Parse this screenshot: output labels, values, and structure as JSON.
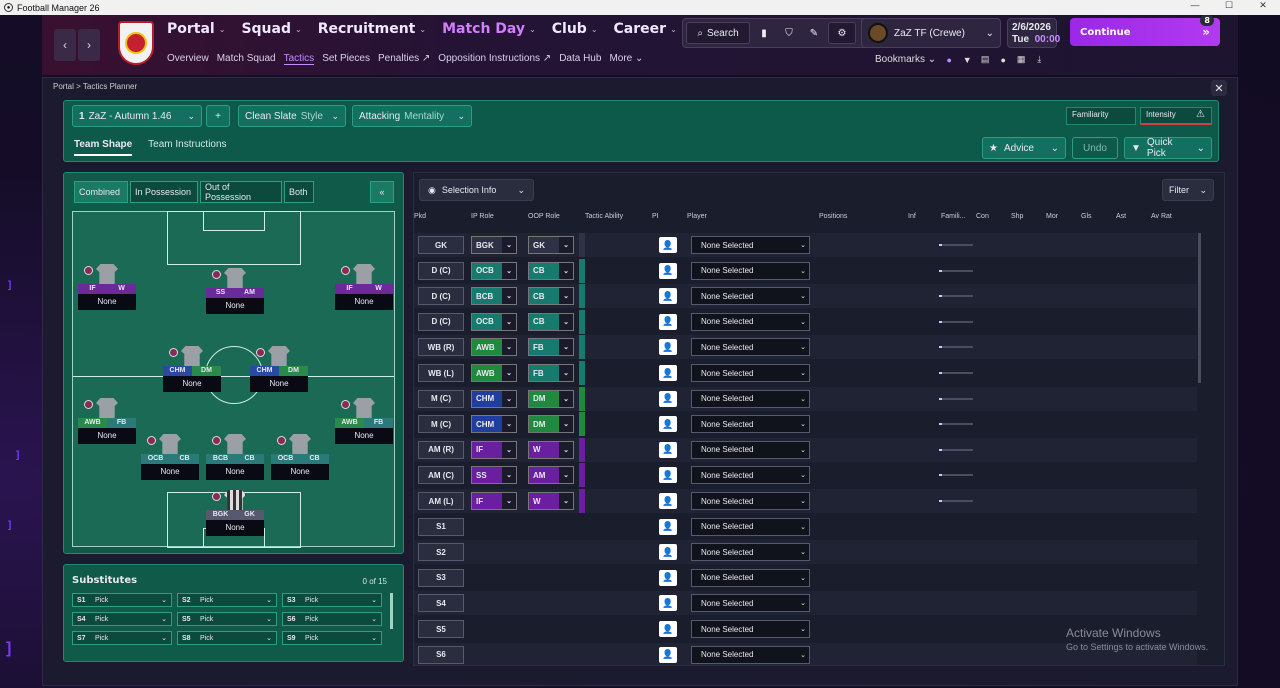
{
  "window": {
    "title": "Football Manager 26",
    "minimize": "—",
    "maximize": "☐",
    "close": "✕"
  },
  "nav": {
    "back": "‹",
    "forward": "›",
    "main": [
      {
        "label": "Portal",
        "active": false
      },
      {
        "label": "Squad",
        "active": false
      },
      {
        "label": "Recruitment",
        "active": false
      },
      {
        "label": "Match Day",
        "active": true
      },
      {
        "label": "Club",
        "active": false
      },
      {
        "label": "Career",
        "active": false
      }
    ],
    "chevron": "⌄",
    "sub": [
      {
        "label": "Overview",
        "active": false
      },
      {
        "label": "Match Squad",
        "active": false
      },
      {
        "label": "Tactics",
        "active": true
      },
      {
        "label": "Set Pieces",
        "active": false
      },
      {
        "label": "Penalties ↗",
        "active": false
      },
      {
        "label": "Opposition Instructions ↗",
        "active": false
      },
      {
        "label": "Data Hub",
        "active": false
      },
      {
        "label": "More ⌄",
        "active": false
      }
    ]
  },
  "search": {
    "label": "Search",
    "icon": "search-icon"
  },
  "profile": {
    "name": "ZaZ TF (Crewe)",
    "chevron": "⌄"
  },
  "date": {
    "date": "2/6/2026",
    "day": "Tue",
    "time": "00:00"
  },
  "continue": {
    "label": "Continue",
    "badge": "8",
    "arrow": "»"
  },
  "bookmarks": {
    "label": "Bookmarks",
    "chevron": "⌄"
  },
  "breadcrumb": {
    "portal": "Portal",
    "sep": ">",
    "page": "Tactics Planner"
  },
  "close": "✕",
  "tactic": {
    "num": "1",
    "name": "ZaZ - Autumn 1.46",
    "add": "+",
    "style_name": "Clean Slate",
    "style_label": "Style",
    "mentality_name": "Attacking",
    "mentality_label": "Mentality",
    "familiarity": "Familiarity",
    "intensity": "Intensity",
    "intensity_icon": "⚠",
    "advice": "Advice",
    "undo": "Undo",
    "quick_pick": "Quick Pick",
    "dd": "⌄",
    "star": "★"
  },
  "shape_tabs": {
    "team_shape": "Team Shape",
    "team_instructions": "Team Instructions"
  },
  "phase_tabs": {
    "combined": "Combined",
    "in_possession": "In Possession",
    "out_possession": "Out of Possession",
    "both": "Both",
    "collapse": "«"
  },
  "pitch_players": [
    {
      "r1": "IF",
      "r2": "W",
      "c1": "r-att",
      "c2": "r-att",
      "name": "None",
      "gk": false
    },
    {
      "r1": "SS",
      "r2": "AM",
      "c1": "r-att",
      "c2": "r-att",
      "name": "None",
      "gk": false
    },
    {
      "r1": "IF",
      "r2": "W",
      "c1": "r-att",
      "c2": "r-att",
      "name": "None",
      "gk": false
    },
    {
      "r1": "CHM",
      "r2": "DM",
      "c1": "r-mid",
      "c2": "r-dm",
      "name": "None",
      "gk": false
    },
    {
      "r1": "CHM",
      "r2": "DM",
      "c1": "r-mid",
      "c2": "r-dm",
      "name": "None",
      "gk": false
    },
    {
      "r1": "AWB",
      "r2": "FB",
      "c1": "r-dm",
      "c2": "r-def",
      "name": "None",
      "gk": false
    },
    {
      "r1": "AWB",
      "r2": "FB",
      "c1": "r-dm",
      "c2": "r-def",
      "name": "None",
      "gk": false
    },
    {
      "r1": "OCB",
      "r2": "CB",
      "c1": "r-def",
      "c2": "r-def",
      "name": "None",
      "gk": false
    },
    {
      "r1": "BCB",
      "r2": "CB",
      "c1": "r-def",
      "c2": "r-def",
      "name": "None",
      "gk": false
    },
    {
      "r1": "OCB",
      "r2": "CB",
      "c1": "r-def",
      "c2": "r-def",
      "name": "None",
      "gk": false
    },
    {
      "r1": "BGK",
      "r2": "GK",
      "c1": "r-gk",
      "c2": "r-gk",
      "name": "None",
      "gk": true
    }
  ],
  "substitutes": {
    "title": "Substitutes",
    "count": "0 of 15",
    "slots": [
      {
        "n": "S1",
        "v": "Pick"
      },
      {
        "n": "S2",
        "v": "Pick"
      },
      {
        "n": "S3",
        "v": "Pick"
      },
      {
        "n": "S4",
        "v": "Pick"
      },
      {
        "n": "S5",
        "v": "Pick"
      },
      {
        "n": "S6",
        "v": "Pick"
      },
      {
        "n": "S7",
        "v": "Pick"
      },
      {
        "n": "S8",
        "v": "Pick"
      },
      {
        "n": "S9",
        "v": "Pick"
      }
    ]
  },
  "table": {
    "selection_info": "Selection Info",
    "filter": "Filter",
    "headers": [
      "Pkd",
      "IP Role",
      "OOP Role",
      "Tactic Ability",
      "PI",
      "Player",
      "Positions",
      "Inf",
      "Famili...",
      "Con",
      "Shp",
      "Mor",
      "Gls",
      "Ast",
      "Av Rat"
    ],
    "rows": [
      {
        "pos": "GK",
        "ip": "BGK",
        "oop": "GK",
        "ipc": "#2f3246",
        "oopc": "#2f3246",
        "player": "None Selected",
        "fam": true
      },
      {
        "pos": "D (C)",
        "ip": "OCB",
        "oop": "CB",
        "ipc": "#167a6e",
        "oopc": "#167a6e",
        "player": "None Selected",
        "fam": true
      },
      {
        "pos": "D (C)",
        "ip": "BCB",
        "oop": "CB",
        "ipc": "#167a6e",
        "oopc": "#167a6e",
        "player": "None Selected",
        "fam": true
      },
      {
        "pos": "D (C)",
        "ip": "OCB",
        "oop": "CB",
        "ipc": "#167a6e",
        "oopc": "#167a6e",
        "player": "None Selected",
        "fam": true
      },
      {
        "pos": "WB (R)",
        "ip": "AWB",
        "oop": "FB",
        "ipc": "#1f8a3e",
        "oopc": "#167a6e",
        "player": "None Selected",
        "fam": true
      },
      {
        "pos": "WB (L)",
        "ip": "AWB",
        "oop": "FB",
        "ipc": "#1f8a3e",
        "oopc": "#167a6e",
        "player": "None Selected",
        "fam": true
      },
      {
        "pos": "M (C)",
        "ip": "CHM",
        "oop": "DM",
        "ipc": "#1f3ea0",
        "oopc": "#1f8a3e",
        "player": "None Selected",
        "fam": true
      },
      {
        "pos": "M (C)",
        "ip": "CHM",
        "oop": "DM",
        "ipc": "#1f3ea0",
        "oopc": "#1f8a3e",
        "player": "None Selected",
        "fam": true
      },
      {
        "pos": "AM (R)",
        "ip": "IF",
        "oop": "W",
        "ipc": "#6a1fa0",
        "oopc": "#6a1fa0",
        "player": "None Selected",
        "fam": true
      },
      {
        "pos": "AM (C)",
        "ip": "SS",
        "oop": "AM",
        "ipc": "#6a1fa0",
        "oopc": "#6a1fa0",
        "player": "None Selected",
        "fam": true
      },
      {
        "pos": "AM (L)",
        "ip": "IF",
        "oop": "W",
        "ipc": "#6a1fa0",
        "oopc": "#6a1fa0",
        "player": "None Selected",
        "fam": true
      },
      {
        "pos": "S1",
        "ip": "",
        "oop": "",
        "ipc": "",
        "oopc": "",
        "player": "None Selected",
        "fam": false
      },
      {
        "pos": "S2",
        "ip": "",
        "oop": "",
        "ipc": "",
        "oopc": "",
        "player": "None Selected",
        "fam": false
      },
      {
        "pos": "S3",
        "ip": "",
        "oop": "",
        "ipc": "",
        "oopc": "",
        "player": "None Selected",
        "fam": false
      },
      {
        "pos": "S4",
        "ip": "",
        "oop": "",
        "ipc": "",
        "oopc": "",
        "player": "None Selected",
        "fam": false
      },
      {
        "pos": "S5",
        "ip": "",
        "oop": "",
        "ipc": "",
        "oopc": "",
        "player": "None Selected",
        "fam": false
      },
      {
        "pos": "S6",
        "ip": "",
        "oop": "",
        "ipc": "",
        "oopc": "",
        "player": "None Selected",
        "fam": false
      }
    ]
  },
  "watermark": {
    "line1": "Activate Windows",
    "line2": "Go to Settings to activate Windows."
  }
}
